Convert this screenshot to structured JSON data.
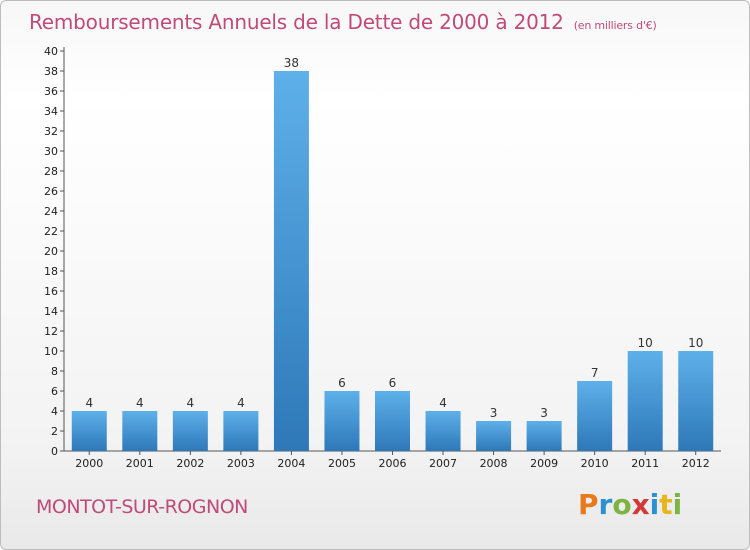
{
  "chart_data": {
    "type": "bar",
    "title": "Remboursements Annuels de la Dette de 2000 à 2012",
    "subtitle": "(en milliers d'€)",
    "categories": [
      "2000",
      "2001",
      "2002",
      "2003",
      "2004",
      "2005",
      "2006",
      "2007",
      "2008",
      "2009",
      "2010",
      "2011",
      "2012"
    ],
    "values": [
      4,
      4,
      4,
      4,
      38,
      6,
      6,
      4,
      3,
      3,
      7,
      10,
      10
    ],
    "ylim": [
      0,
      40
    ],
    "yticks": [
      0,
      2,
      4,
      6,
      8,
      10,
      12,
      14,
      16,
      18,
      20,
      22,
      24,
      26,
      28,
      30,
      32,
      34,
      36,
      38,
      40
    ],
    "xlabel": "",
    "ylabel": "",
    "grid": false,
    "bar_color": "#3a8fd0",
    "bar_color_light": "#5eb0ea",
    "bar_color_dark": "#2e78b8"
  },
  "footer": {
    "commune": "MONTOT-SUR-ROGNON",
    "logo_letters": [
      "P",
      "r",
      "o",
      "x",
      "i",
      "t",
      "i"
    ],
    "logo_colors": [
      "#e8791d",
      "#2c8fcf",
      "#7cb342",
      "#d23a3a",
      "#2c8fcf",
      "#e8b51d",
      "#7cb342"
    ]
  },
  "colors": {
    "title": "#c04a7a",
    "axis": "#555555"
  }
}
